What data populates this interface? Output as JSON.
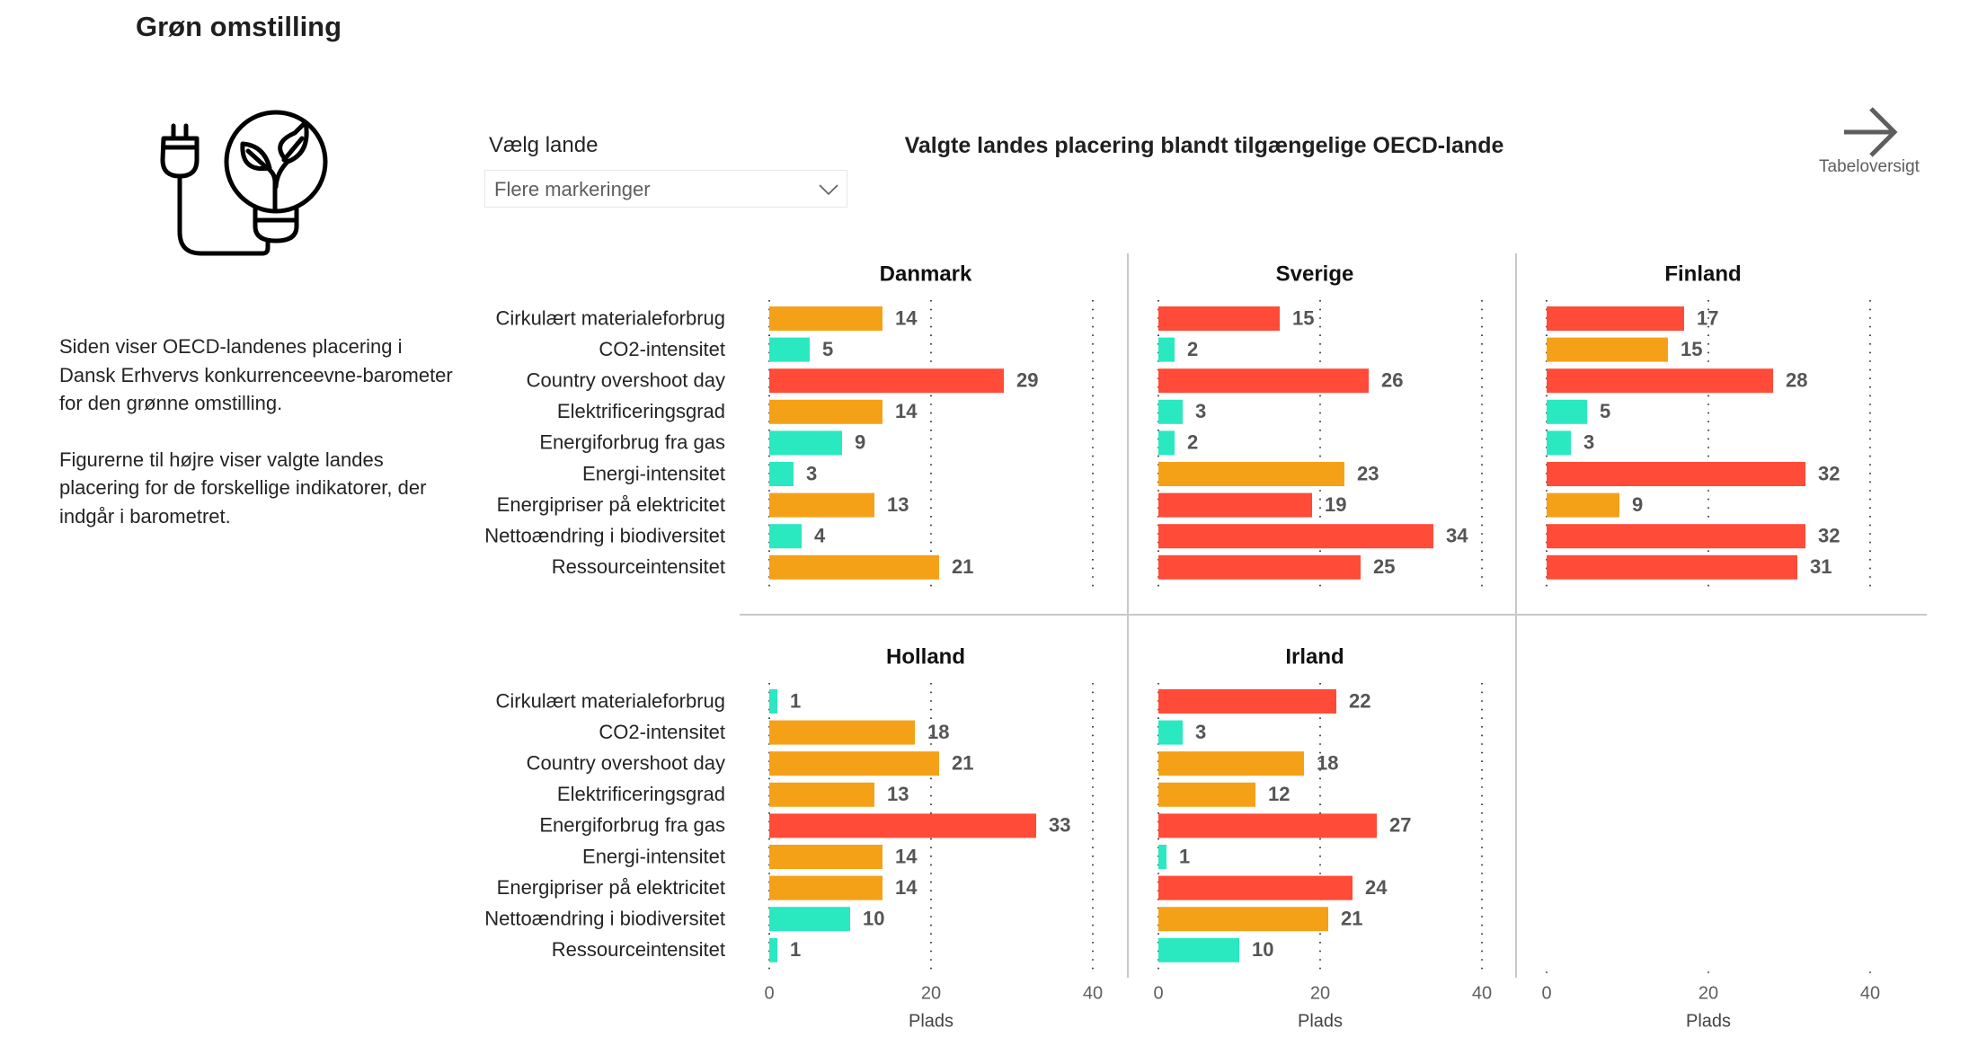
{
  "page": {
    "title": "Grøn omstilling",
    "icon": "plug-lightbulb-leaf-icon",
    "intro": [
      "Siden viser OECD-landenes placering i Dansk Erhvervs konkurrenceevne-barometer for den grønne omstilling.",
      "Figurerne til højre viser valgte landes placering for de forskellige indikatorer, der indgår i barometret."
    ]
  },
  "filter": {
    "label": "Vælg lande",
    "value": "Flere markeringer",
    "icon": "chevron-down-icon"
  },
  "nav": {
    "label": "Tabeloversigt",
    "icon": "arrow-right-icon"
  },
  "colors": {
    "good": "#2AE8C0",
    "middle": "#F5A118",
    "bad": "#FF4B37"
  },
  "chart_data": {
    "type": "bar",
    "orientation": "horizontal",
    "title": "Valgte landes placering blandt tilgængelige OECD-lande",
    "xlabel": "Plads",
    "xlim": [
      0,
      40
    ],
    "xticks": [
      0,
      20,
      40
    ],
    "grid": true,
    "categories": [
      "Cirkulært materialeforbrug",
      "CO2-intensitet",
      "Country overshoot day",
      "Elektrificeringsgrad",
      "Energiforbrug fra gas",
      "Energi-intensitet",
      "Energipriser på elektricitet",
      "Nettoændring i biodiversitet",
      "Ressourceintensitet"
    ],
    "panels": [
      {
        "name": "Danmark",
        "values": [
          14,
          5,
          29,
          14,
          9,
          3,
          13,
          4,
          21
        ],
        "levels": [
          "middle",
          "good",
          "bad",
          "middle",
          "good",
          "good",
          "middle",
          "good",
          "middle"
        ]
      },
      {
        "name": "Sverige",
        "values": [
          15,
          2,
          26,
          3,
          2,
          23,
          19,
          34,
          25
        ],
        "levels": [
          "bad",
          "good",
          "bad",
          "good",
          "good",
          "middle",
          "bad",
          "bad",
          "bad"
        ]
      },
      {
        "name": "Finland",
        "values": [
          17,
          15,
          28,
          5,
          3,
          32,
          9,
          32,
          31
        ],
        "levels": [
          "bad",
          "middle",
          "bad",
          "good",
          "good",
          "bad",
          "middle",
          "bad",
          "bad"
        ]
      },
      {
        "name": "Holland",
        "values": [
          1,
          18,
          21,
          13,
          33,
          14,
          14,
          10,
          1
        ],
        "levels": [
          "good",
          "middle",
          "middle",
          "middle",
          "bad",
          "middle",
          "middle",
          "good",
          "good"
        ]
      },
      {
        "name": "Irland",
        "values": [
          22,
          3,
          18,
          12,
          27,
          1,
          24,
          21,
          10
        ],
        "levels": [
          "bad",
          "good",
          "middle",
          "middle",
          "bad",
          "good",
          "bad",
          "middle",
          "good"
        ]
      },
      {
        "name": "",
        "values": [],
        "levels": []
      }
    ]
  }
}
